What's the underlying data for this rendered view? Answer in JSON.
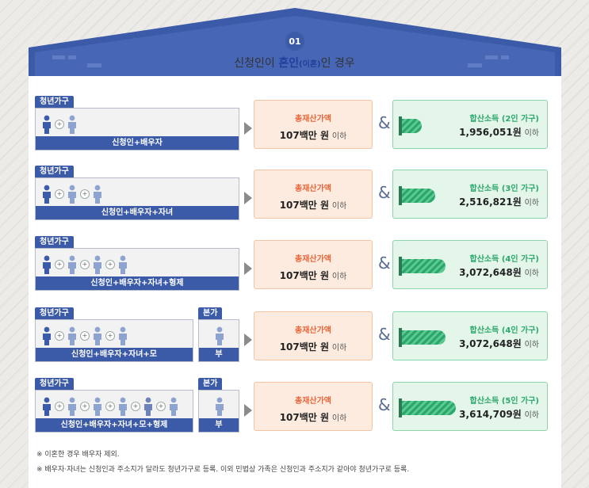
{
  "header": {
    "badge": "01",
    "title_pre": "신청인이 ",
    "title_hl": "혼인",
    "title_small": "(이혼)",
    "title_post": "인 경우"
  },
  "tags": {
    "youth": "청년가구",
    "parent": "본가"
  },
  "colors": {
    "navy": "#3b5aa8",
    "orange": "#e8663a",
    "green": "#2aa86a"
  },
  "icons": [
    "person-icon",
    "plus-icon"
  ],
  "rows": [
    {
      "members": "신청인+배우자",
      "parent": "",
      "asset_label": "총재산가액",
      "asset_value": "107백만 원",
      "asset_suffix": "이하",
      "income_label": "합산소득 (2인 가구)",
      "income_value": "1,956,051원",
      "income_suffix": "이하",
      "gauge": 0.2
    },
    {
      "members": "신청인+배우자+자녀",
      "parent": "",
      "asset_label": "총재산가액",
      "asset_value": "107백만 원",
      "asset_suffix": "이하",
      "income_label": "합산소득 (3인 가구)",
      "income_value": "2,516,821원",
      "income_suffix": "이하",
      "gauge": 0.33
    },
    {
      "members": "신청인+배우자+자녀+형제",
      "parent": "",
      "asset_label": "총재산가액",
      "asset_value": "107백만 원",
      "asset_suffix": "이하",
      "income_label": "합산소득 (4인 가구)",
      "income_value": "3,072,648원",
      "income_suffix": "이하",
      "gauge": 0.43
    },
    {
      "members": "신청인+배우자+자녀+모",
      "parent": "부",
      "asset_label": "총재산가액",
      "asset_value": "107백만 원",
      "asset_suffix": "이하",
      "income_label": "합산소득 (4인 가구)",
      "income_value": "3,072,648원",
      "income_suffix": "이하",
      "gauge": 0.43
    },
    {
      "members": "신청인+배우자+자녀+모+형제",
      "parent": "부",
      "asset_label": "총재산가액",
      "asset_value": "107백만 원",
      "asset_suffix": "이하",
      "income_label": "합산소득 (5인 가구)",
      "income_value": "3,614,709원",
      "income_suffix": "이하",
      "gauge": 0.53
    }
  ],
  "notes": [
    "※ 이혼한 경우 배우자 제외.",
    "※ 배우자·자녀는 신청인과 주소지가 달라도 청년가구로 등록. 이외 민법상 가족은 신청인과 주소지가 같아야 청년가구로 등록."
  ]
}
